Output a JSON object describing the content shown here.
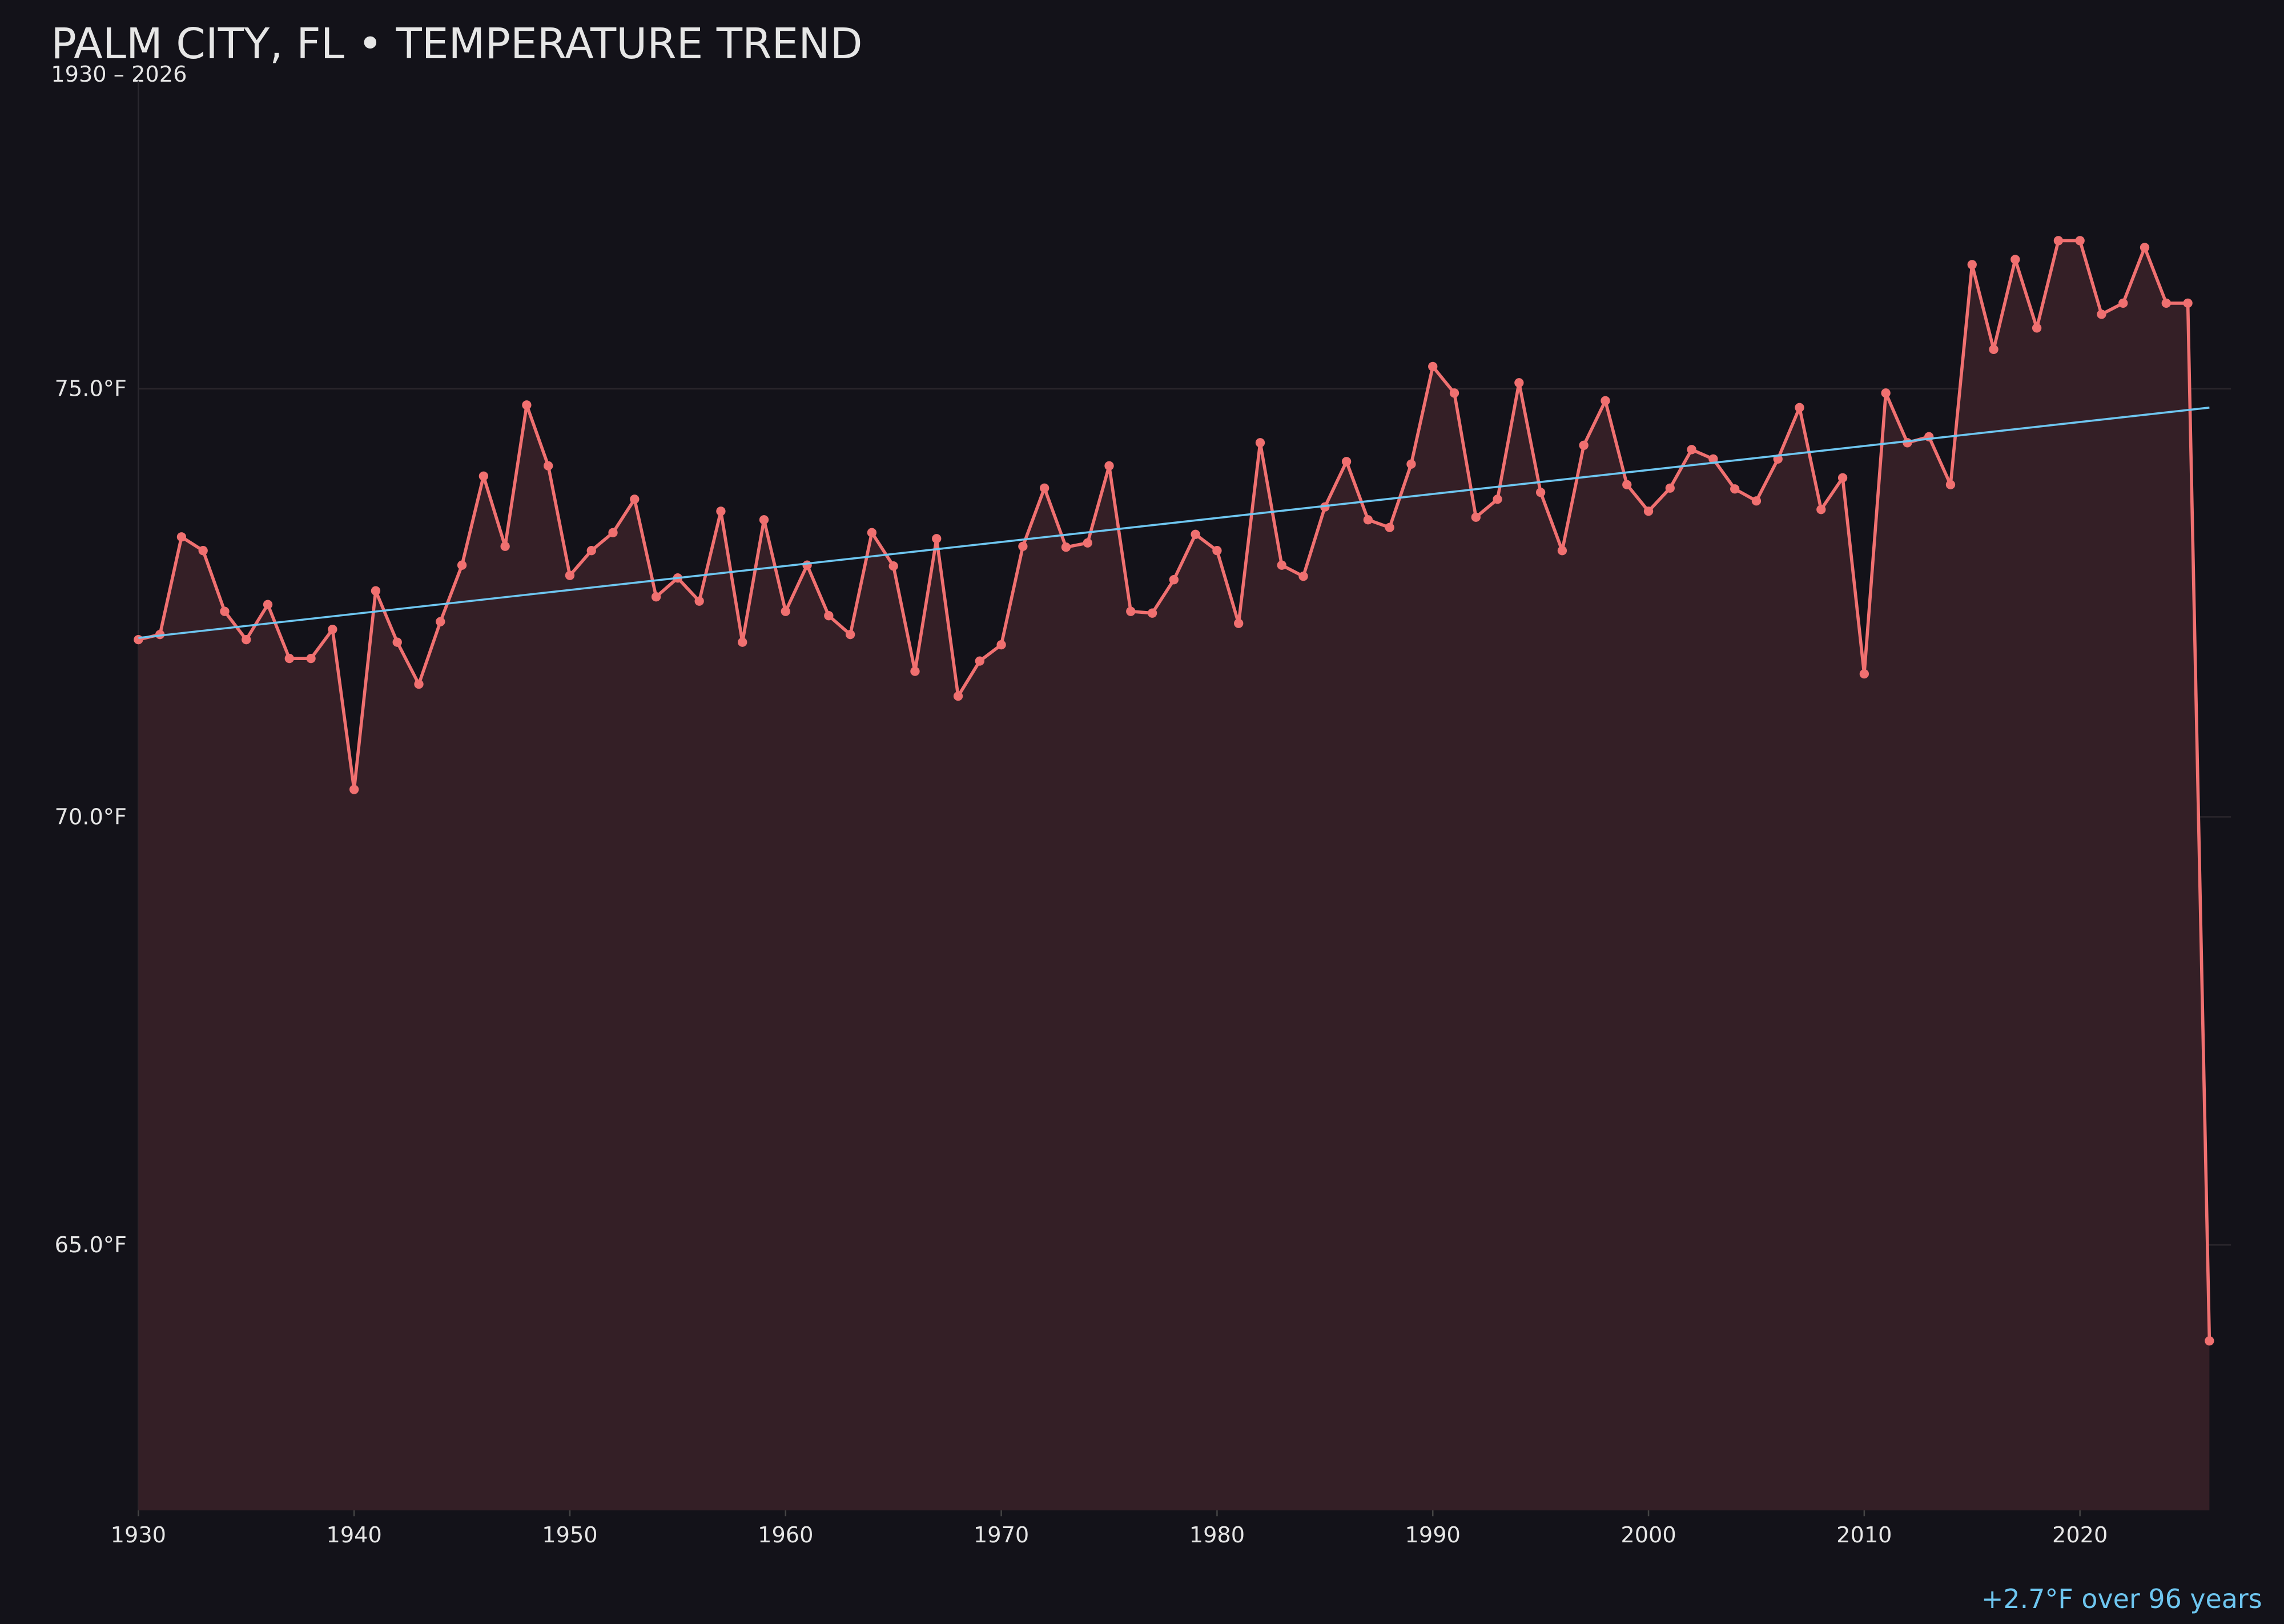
{
  "chart_data": {
    "type": "line",
    "title": "PALM CITY, FL • TEMPERATURE TREND",
    "subtitle": "1930 – 2026",
    "annotation": "+2.7°F over 96 years",
    "x": [
      1930,
      1931,
      1932,
      1933,
      1934,
      1935,
      1936,
      1937,
      1938,
      1939,
      1940,
      1941,
      1942,
      1943,
      1944,
      1945,
      1946,
      1947,
      1948,
      1949,
      1950,
      1951,
      1952,
      1953,
      1954,
      1955,
      1956,
      1957,
      1958,
      1959,
      1960,
      1961,
      1962,
      1963,
      1964,
      1965,
      1966,
      1967,
      1968,
      1969,
      1970,
      1971,
      1972,
      1973,
      1974,
      1975,
      1976,
      1977,
      1978,
      1979,
      1980,
      1981,
      1982,
      1983,
      1984,
      1985,
      1986,
      1987,
      1988,
      1989,
      1990,
      1991,
      1992,
      1993,
      1994,
      1995,
      1996,
      1997,
      1998,
      1999,
      2000,
      2001,
      2002,
      2003,
      2004,
      2005,
      2006,
      2007,
      2008,
      2009,
      2010,
      2011,
      2012,
      2013,
      2014,
      2015,
      2016,
      2017,
      2018,
      2019,
      2020,
      2021,
      2022,
      2023,
      2024,
      2025,
      2026
    ],
    "series": [
      {
        "color": "#f07070",
        "fill": "#341f26",
        "values": [
          72.07,
          72.13,
          73.27,
          73.11,
          72.4,
          72.07,
          72.48,
          71.85,
          71.85,
          72.19,
          70.32,
          72.64,
          72.04,
          71.55,
          72.28,
          72.94,
          73.98,
          73.16,
          74.81,
          74.1,
          72.82,
          73.11,
          73.32,
          73.71,
          72.57,
          72.79,
          72.52,
          73.57,
          72.04,
          73.47,
          72.4,
          72.94,
          72.35,
          72.13,
          73.32,
          72.93,
          71.7,
          73.25,
          71.41,
          71.82,
          72.01,
          73.16,
          73.84,
          73.15,
          73.2,
          74.1,
          72.4,
          72.38,
          72.77,
          73.3,
          73.11,
          72.26,
          74.37,
          72.94,
          72.81,
          73.62,
          74.15,
          73.47,
          73.38,
          74.12,
          75.26,
          74.95,
          73.5,
          73.71,
          75.07,
          73.79,
          73.11,
          74.34,
          74.86,
          73.88,
          73.57,
          73.84,
          74.29,
          74.18,
          73.83,
          73.69,
          74.18,
          74.78,
          73.59,
          73.96,
          71.67,
          74.95,
          74.37,
          74.44,
          73.88,
          76.45,
          75.46,
          76.51,
          75.71,
          76.73,
          76.73,
          75.87,
          76.0,
          76.65,
          76.0,
          76.0,
          63.88
        ]
      }
    ],
    "trend": {
      "color": "#6ec6f0",
      "x": [
        1930,
        2026
      ],
      "values": [
        72.09,
        74.78
      ]
    },
    "xlim": [
      1930,
      2027
    ],
    "ylim": [
      61.9,
      78.6
    ],
    "xticks": [
      1930,
      1940,
      1950,
      1960,
      1970,
      1980,
      1990,
      2000,
      2010,
      2020
    ],
    "yticks": [
      {
        "value": 65,
        "label": "65.0°F"
      },
      {
        "value": 70,
        "label": "70.0°F"
      },
      {
        "value": 75,
        "label": "75.0°F"
      }
    ],
    "grid": true
  }
}
